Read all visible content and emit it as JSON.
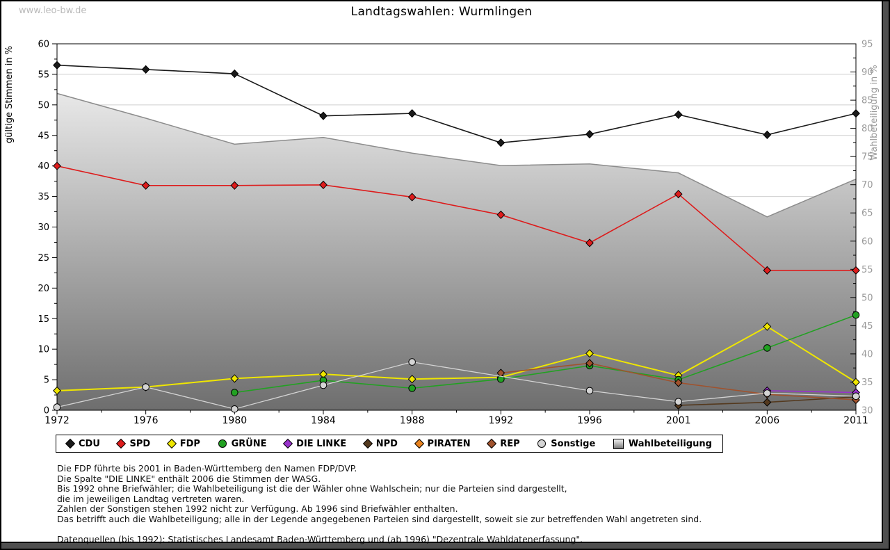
{
  "watermark": "www.leo-bw.de",
  "title": "Landtagswahlen: Wurmlingen",
  "chart_data": {
    "type": "line",
    "title": "Landtagswahlen: Wurmlingen",
    "categories": [
      "1972",
      "1976",
      "1980",
      "1984",
      "1988",
      "1992",
      "1996",
      "2001",
      "2006",
      "2011"
    ],
    "left_axis": {
      "label": "gültige Stimmen in %",
      "min": 0,
      "max": 60,
      "tick_step": 5,
      "gridlines": true
    },
    "right_axis": {
      "label": "Wahlbeteiligung in %",
      "min": 30,
      "max": 95,
      "tick_step": 5,
      "color": "#9a9a9a"
    },
    "legend_position": "bottom",
    "series": [
      {
        "name": "CDU",
        "color": "#1a1a1a",
        "marker": "diamond",
        "axis": "left",
        "values": [
          56.5,
          55.8,
          55.1,
          48.2,
          48.6,
          43.8,
          45.2,
          48.4,
          45.1,
          48.6
        ]
      },
      {
        "name": "SPD",
        "color": "#dd1c1c",
        "marker": "diamond",
        "axis": "left",
        "values": [
          40.0,
          36.8,
          36.8,
          36.9,
          34.9,
          32.0,
          27.4,
          35.4,
          22.9,
          22.9
        ]
      },
      {
        "name": "FDP",
        "color": "#efe600",
        "marker": "diamond",
        "axis": "left",
        "values": [
          3.2,
          3.8,
          5.2,
          5.9,
          5.1,
          5.4,
          9.3,
          5.7,
          13.7,
          4.6
        ]
      },
      {
        "name": "GRÜNE",
        "color": "#22a122",
        "marker": "circle",
        "axis": "left",
        "values": [
          null,
          null,
          2.9,
          4.9,
          3.6,
          5.1,
          7.3,
          5.0,
          10.2,
          15.6
        ]
      },
      {
        "name": "DIE LINKE",
        "color": "#9932cc",
        "marker": "diamond",
        "axis": "left",
        "values": [
          null,
          null,
          null,
          null,
          null,
          null,
          null,
          null,
          3.2,
          2.9
        ]
      },
      {
        "name": "NPD",
        "color": "#54391e",
        "marker": "diamond",
        "axis": "left",
        "values": [
          null,
          null,
          null,
          null,
          null,
          null,
          null,
          0.8,
          1.3,
          2.2
        ]
      },
      {
        "name": "PIRATEN",
        "color": "#e8821e",
        "marker": "diamond",
        "axis": "left",
        "values": [
          null,
          null,
          null,
          null,
          null,
          null,
          null,
          null,
          null,
          2.1
        ]
      },
      {
        "name": "REP",
        "color": "#a0522d",
        "marker": "diamond",
        "axis": "left",
        "values": [
          null,
          null,
          null,
          null,
          null,
          6.1,
          7.7,
          4.5,
          2.6,
          1.7
        ]
      },
      {
        "name": "Sonstige",
        "color": "#d4d4d4",
        "marker": "circle",
        "axis": "left",
        "values": [
          0.5,
          3.8,
          0.2,
          4.1,
          7.9,
          null,
          3.2,
          1.4,
          2.8,
          2.3
        ]
      },
      {
        "name": "Wahlbeteiligung",
        "color": "#8c8c8c",
        "marker": "square",
        "type": "area",
        "axis": "right",
        "values": [
          86.2,
          81.8,
          77.2,
          78.4,
          75.6,
          73.4,
          73.7,
          72.1,
          64.3,
          71.0
        ]
      }
    ]
  },
  "footnotes": {
    "notes": [
      "Die FDP führte bis 2001 in Baden-Württemberg den Namen FDP/DVP.",
      "Die Spalte \"DIE LINKE\" enthält 2006 die Stimmen der WASG.",
      "Bis 1992 ohne Briefwähler; die Wahlbeteiligung ist die der Wähler ohne Wahlschein; nur die Parteien sind dargestellt,",
      "die im jeweiligen Landtag vertreten waren.",
      "Zahlen der Sonstigen stehen 1992 nicht zur Verfügung. Ab 1996 sind Briefwähler enthalten.",
      "Das betrifft auch die Wahlbeteiligung; alle in der Legende angegebenen Parteien sind dargestellt, soweit sie zur betreffenden Wahl angetreten sind."
    ],
    "sources": "Datenquellen (bis 1992): Statistisches Landesamt Baden-Württemberg und (ab 1996) \"Dezentrale Wahldatenerfassung\"."
  }
}
